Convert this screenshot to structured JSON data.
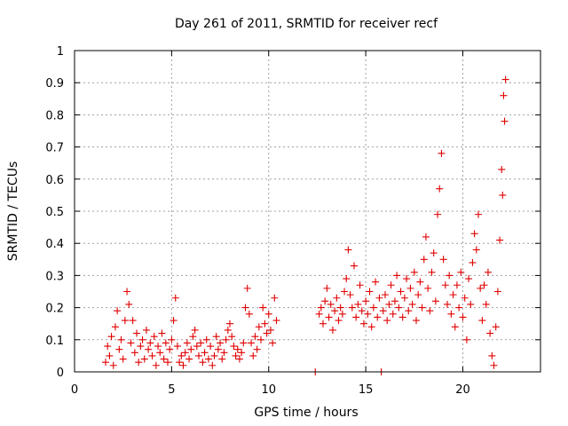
{
  "chart_data": {
    "type": "scatter",
    "title": "Day 261 of 2011, SRMTID for receiver recf",
    "xlabel": "GPS time / hours",
    "ylabel": "SRMTID / TECUs",
    "xlim": [
      0,
      24
    ],
    "ylim": [
      0,
      1
    ],
    "x_ticks": [
      0,
      5,
      10,
      15,
      20
    ],
    "x_tick_labels": [
      "0",
      "5",
      "10",
      "15",
      "20"
    ],
    "y_ticks": [
      0,
      0.1,
      0.2,
      0.3,
      0.4,
      0.5,
      0.6,
      0.7,
      0.8,
      0.9,
      1
    ],
    "y_tick_labels": [
      "0",
      "0.1",
      "0.2",
      "0.3",
      "0.4",
      "0.5",
      "0.6",
      "0.7",
      "0.8",
      "0.9",
      "1"
    ],
    "grid": true,
    "marker": "+",
    "color": "#e00000",
    "series": [
      {
        "name": "SRMTID",
        "points": [
          [
            1.6,
            0.03
          ],
          [
            1.7,
            0.08
          ],
          [
            1.8,
            0.05
          ],
          [
            1.9,
            0.11
          ],
          [
            2.0,
            0.02
          ],
          [
            2.1,
            0.14
          ],
          [
            2.2,
            0.19
          ],
          [
            2.3,
            0.07
          ],
          [
            2.4,
            0.1
          ],
          [
            2.5,
            0.04
          ],
          [
            2.6,
            0.16
          ],
          [
            2.7,
            0.25
          ],
          [
            2.8,
            0.21
          ],
          [
            2.9,
            0.09
          ],
          [
            3.0,
            0.16
          ],
          [
            3.1,
            0.06
          ],
          [
            3.2,
            0.12
          ],
          [
            3.3,
            0.03
          ],
          [
            3.4,
            0.08
          ],
          [
            3.5,
            0.1
          ],
          [
            3.6,
            0.04
          ],
          [
            3.7,
            0.13
          ],
          [
            3.8,
            0.07
          ],
          [
            3.9,
            0.09
          ],
          [
            4.0,
            0.05
          ],
          [
            4.1,
            0.11
          ],
          [
            4.2,
            0.02
          ],
          [
            4.3,
            0.08
          ],
          [
            4.4,
            0.06
          ],
          [
            4.5,
            0.12
          ],
          [
            4.6,
            0.04
          ],
          [
            4.7,
            0.09
          ],
          [
            4.8,
            0.03
          ],
          [
            4.9,
            0.07
          ],
          [
            5.0,
            0.1
          ],
          [
            5.1,
            0.16
          ],
          [
            5.2,
            0.23
          ],
          [
            5.3,
            0.08
          ],
          [
            5.4,
            0.03
          ],
          [
            5.5,
            0.05
          ],
          [
            5.6,
            0.02
          ],
          [
            5.7,
            0.06
          ],
          [
            5.8,
            0.09
          ],
          [
            5.9,
            0.04
          ],
          [
            6.0,
            0.07
          ],
          [
            6.1,
            0.11
          ],
          [
            6.2,
            0.13
          ],
          [
            6.3,
            0.08
          ],
          [
            6.4,
            0.05
          ],
          [
            6.5,
            0.09
          ],
          [
            6.6,
            0.03
          ],
          [
            6.7,
            0.06
          ],
          [
            6.8,
            0.1
          ],
          [
            6.9,
            0.04
          ],
          [
            7.0,
            0.08
          ],
          [
            7.1,
            0.02
          ],
          [
            7.2,
            0.05
          ],
          [
            7.3,
            0.11
          ],
          [
            7.4,
            0.07
          ],
          [
            7.5,
            0.09
          ],
          [
            7.6,
            0.04
          ],
          [
            7.7,
            0.06
          ],
          [
            7.8,
            0.1
          ],
          [
            7.9,
            0.13
          ],
          [
            8.0,
            0.15
          ],
          [
            8.1,
            0.11
          ],
          [
            8.2,
            0.08
          ],
          [
            8.3,
            0.05
          ],
          [
            8.4,
            0.07
          ],
          [
            8.5,
            0.04
          ],
          [
            8.6,
            0.06
          ],
          [
            8.7,
            0.09
          ],
          [
            8.8,
            0.2
          ],
          [
            8.9,
            0.26
          ],
          [
            9.0,
            0.18
          ],
          [
            9.1,
            0.09
          ],
          [
            9.2,
            0.05
          ],
          [
            9.3,
            0.11
          ],
          [
            9.4,
            0.07
          ],
          [
            9.5,
            0.14
          ],
          [
            9.6,
            0.1
          ],
          [
            9.7,
            0.2
          ],
          [
            9.8,
            0.15
          ],
          [
            9.9,
            0.12
          ],
          [
            10.0,
            0.18
          ],
          [
            10.1,
            0.13
          ],
          [
            10.2,
            0.09
          ],
          [
            10.3,
            0.23
          ],
          [
            10.4,
            0.16
          ],
          [
            12.4,
            0.0
          ],
          [
            12.6,
            0.18
          ],
          [
            12.7,
            0.2
          ],
          [
            12.8,
            0.15
          ],
          [
            12.9,
            0.22
          ],
          [
            13.0,
            0.26
          ],
          [
            13.1,
            0.17
          ],
          [
            13.2,
            0.21
          ],
          [
            13.3,
            0.13
          ],
          [
            13.4,
            0.19
          ],
          [
            13.5,
            0.23
          ],
          [
            13.6,
            0.16
          ],
          [
            13.7,
            0.2
          ],
          [
            13.8,
            0.18
          ],
          [
            13.9,
            0.25
          ],
          [
            14.0,
            0.29
          ],
          [
            14.1,
            0.38
          ],
          [
            14.2,
            0.24
          ],
          [
            14.3,
            0.2
          ],
          [
            14.4,
            0.33
          ],
          [
            14.5,
            0.17
          ],
          [
            14.6,
            0.21
          ],
          [
            14.7,
            0.27
          ],
          [
            14.8,
            0.19
          ],
          [
            14.9,
            0.15
          ],
          [
            15.0,
            0.22
          ],
          [
            15.1,
            0.18
          ],
          [
            15.2,
            0.25
          ],
          [
            15.3,
            0.14
          ],
          [
            15.4,
            0.2
          ],
          [
            15.5,
            0.28
          ],
          [
            15.6,
            0.17
          ],
          [
            15.7,
            0.23
          ],
          [
            15.8,
            0.0
          ],
          [
            15.9,
            0.19
          ],
          [
            16.0,
            0.24
          ],
          [
            16.1,
            0.16
          ],
          [
            16.2,
            0.21
          ],
          [
            16.3,
            0.27
          ],
          [
            16.4,
            0.18
          ],
          [
            16.5,
            0.22
          ],
          [
            16.6,
            0.3
          ],
          [
            16.7,
            0.2
          ],
          [
            16.8,
            0.25
          ],
          [
            16.9,
            0.17
          ],
          [
            17.0,
            0.23
          ],
          [
            17.1,
            0.29
          ],
          [
            17.2,
            0.19
          ],
          [
            17.3,
            0.26
          ],
          [
            17.4,
            0.21
          ],
          [
            17.5,
            0.31
          ],
          [
            17.6,
            0.16
          ],
          [
            17.7,
            0.24
          ],
          [
            17.8,
            0.28
          ],
          [
            17.9,
            0.2
          ],
          [
            18.0,
            0.35
          ],
          [
            18.1,
            0.42
          ],
          [
            18.2,
            0.26
          ],
          [
            18.3,
            0.19
          ],
          [
            18.4,
            0.31
          ],
          [
            18.5,
            0.37
          ],
          [
            18.6,
            0.22
          ],
          [
            18.7,
            0.49
          ],
          [
            18.8,
            0.57
          ],
          [
            18.9,
            0.68
          ],
          [
            19.0,
            0.35
          ],
          [
            19.1,
            0.27
          ],
          [
            19.2,
            0.21
          ],
          [
            19.3,
            0.3
          ],
          [
            19.4,
            0.18
          ],
          [
            19.5,
            0.24
          ],
          [
            19.6,
            0.14
          ],
          [
            19.7,
            0.27
          ],
          [
            19.8,
            0.2
          ],
          [
            19.9,
            0.31
          ],
          [
            20.0,
            0.17
          ],
          [
            20.1,
            0.23
          ],
          [
            20.2,
            0.1
          ],
          [
            20.3,
            0.29
          ],
          [
            20.4,
            0.21
          ],
          [
            20.5,
            0.34
          ],
          [
            20.6,
            0.43
          ],
          [
            20.7,
            0.38
          ],
          [
            20.8,
            0.49
          ],
          [
            20.9,
            0.26
          ],
          [
            21.0,
            0.16
          ],
          [
            21.1,
            0.27
          ],
          [
            21.2,
            0.21
          ],
          [
            21.3,
            0.31
          ],
          [
            21.4,
            0.12
          ],
          [
            21.5,
            0.05
          ],
          [
            21.6,
            0.02
          ],
          [
            21.7,
            0.14
          ],
          [
            21.8,
            0.25
          ],
          [
            21.9,
            0.41
          ],
          [
            22.0,
            0.63
          ],
          [
            22.05,
            0.55
          ],
          [
            22.1,
            0.86
          ],
          [
            22.15,
            0.78
          ],
          [
            22.2,
            0.91
          ]
        ]
      }
    ]
  }
}
